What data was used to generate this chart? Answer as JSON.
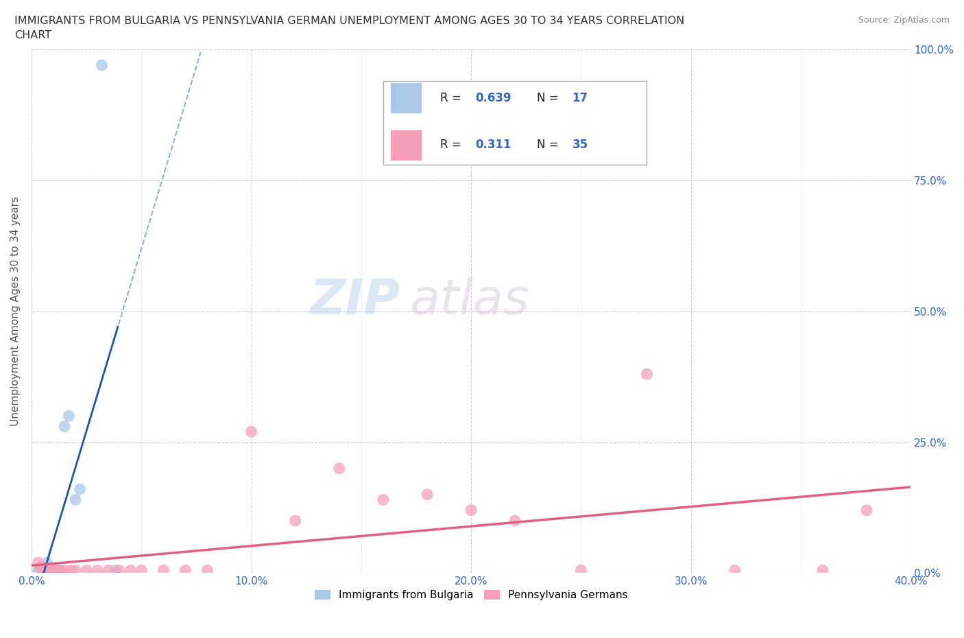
{
  "title_line1": "IMMIGRANTS FROM BULGARIA VS PENNSYLVANIA GERMAN UNEMPLOYMENT AMONG AGES 30 TO 34 YEARS CORRELATION",
  "title_line2": "CHART",
  "source": "Source: ZipAtlas.com",
  "ylabel": "Unemployment Among Ages 30 to 34 years",
  "xlim": [
    0.0,
    0.4
  ],
  "ylim": [
    0.0,
    1.0
  ],
  "xticks_major": [
    0.0,
    0.1,
    0.2,
    0.3,
    0.4
  ],
  "yticks_major": [
    0.0,
    0.25,
    0.5,
    0.75,
    1.0
  ],
  "xtick_labels": [
    "0.0%",
    "10.0%",
    "20.0%",
    "30.0%",
    "40.0%"
  ],
  "ytick_labels": [
    "0.0%",
    "25.0%",
    "50.0%",
    "75.0%",
    "100.0%"
  ],
  "bulgaria_R": "0.639",
  "bulgaria_N": "17",
  "pagerman_R": "0.311",
  "pagerman_N": "35",
  "bulgaria_color": "#aac8e8",
  "pagerman_color": "#f5a0b8",
  "bulgaria_line_color": "#2255aa",
  "pagerman_line_color": "#e06080",
  "dash_color": "#8ab0d8",
  "legend_label_bulgaria": "Immigrants from Bulgaria",
  "legend_label_pagerman": "Pennsylvania Germans",
  "bulgaria_x": [
    0.003,
    0.004,
    0.005,
    0.006,
    0.007,
    0.008,
    0.009,
    0.01,
    0.011,
    0.012,
    0.013,
    0.015,
    0.017,
    0.02,
    0.022,
    0.032,
    0.038
  ],
  "bulgaria_y": [
    0.005,
    0.01,
    0.005,
    0.005,
    0.02,
    0.005,
    0.005,
    0.005,
    0.005,
    0.005,
    0.005,
    0.28,
    0.3,
    0.14,
    0.16,
    0.97,
    0.005
  ],
  "pagerman_x": [
    0.003,
    0.004,
    0.005,
    0.006,
    0.007,
    0.008,
    0.009,
    0.01,
    0.011,
    0.012,
    0.013,
    0.015,
    0.018,
    0.02,
    0.025,
    0.03,
    0.035,
    0.04,
    0.045,
    0.05,
    0.06,
    0.07,
    0.08,
    0.1,
    0.12,
    0.14,
    0.16,
    0.18,
    0.2,
    0.22,
    0.25,
    0.28,
    0.32,
    0.36,
    0.38
  ],
  "pagerman_y": [
    0.02,
    0.01,
    0.005,
    0.01,
    0.005,
    0.005,
    0.005,
    0.005,
    0.005,
    0.005,
    0.005,
    0.005,
    0.005,
    0.005,
    0.005,
    0.005,
    0.005,
    0.005,
    0.005,
    0.005,
    0.005,
    0.005,
    0.005,
    0.27,
    0.1,
    0.2,
    0.14,
    0.15,
    0.12,
    0.1,
    0.005,
    0.38,
    0.005,
    0.005,
    0.12
  ],
  "watermark_zip": "ZIP",
  "watermark_atlas": "atlas"
}
